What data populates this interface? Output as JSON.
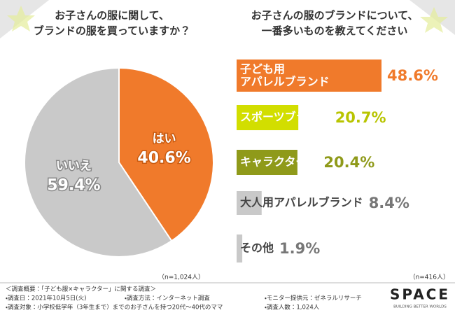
{
  "chart_data": [
    {
      "type": "pie",
      "title": "お子さんの服に関して、\nブランドの服を買っていますか？",
      "categories": [
        "はい",
        "いいえ"
      ],
      "values": [
        40.6,
        59.4
      ],
      "value_labels": [
        "40.6%",
        "59.4%"
      ],
      "colors": [
        "#f07a2b",
        "#c9c9c9"
      ],
      "sample_size": "（n=1,024人）"
    },
    {
      "type": "hbar",
      "title": "お子さんの服のブランドについて、\n一番多いものを教えてください",
      "categories": [
        "子ども用\nアパレルブランド",
        "スポーツブランド",
        "キャラクター物",
        "大人用アパレルブランド",
        "その他"
      ],
      "values": [
        48.6,
        20.7,
        20.4,
        8.4,
        1.9
      ],
      "value_labels": [
        "48.6%",
        "20.7%",
        "20.4%",
        "8.4%",
        "1.9%"
      ],
      "colors": [
        "#f07a2b",
        "#d2de00",
        "#8f9a1a",
        "#c9c9c9",
        "#c9c9c9"
      ],
      "label_colors": [
        "#ffffff",
        "#ffffff",
        "#ffffff",
        "#444444",
        "#444444"
      ],
      "value_label_colors": [
        "#f07a2b",
        "#b8c400",
        "#8f9a1a",
        "#777777",
        "#777777"
      ],
      "sample_size": "（n=416人）"
    }
  ],
  "footer": {
    "heading": "＜調査概要：「子ども服×キャラクター」に関する調査＞",
    "items": [
      "・調査日：2021年10月5日(火)",
      "・調査方法：インターネット調査",
      "・モニター提供元：ゼネラルリサーチ",
      "・調査対象：小学校低学年（3年生まで）までのお子さんを持つ20代〜40代のママ",
      "・調査人数：1,024人"
    ],
    "logo": "SPACE",
    "tagline": "BUILDING BETTER WORLDS"
  }
}
